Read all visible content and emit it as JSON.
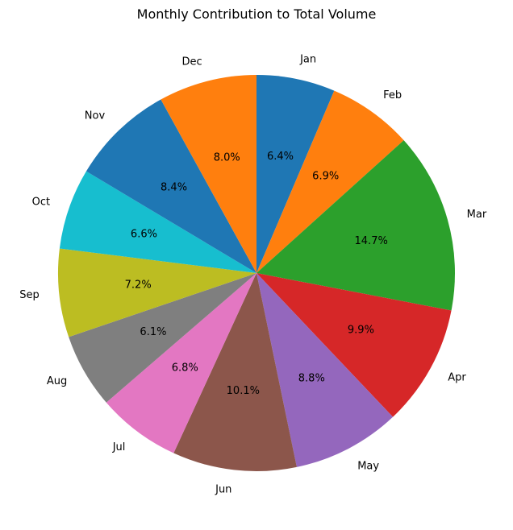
{
  "chart_data": {
    "type": "pie",
    "title": "Monthly Contribution to Total Volume",
    "start_angle_deg": 90,
    "direction": "clockwise",
    "slices": [
      {
        "label": "Jan",
        "value": 6.4,
        "pct_label": "6.4%",
        "color": "#1f77b4"
      },
      {
        "label": "Feb",
        "value": 6.9,
        "pct_label": "6.9%",
        "color": "#ff7f0e"
      },
      {
        "label": "Mar",
        "value": 14.7,
        "pct_label": "14.7%",
        "color": "#2ca02c"
      },
      {
        "label": "Apr",
        "value": 9.9,
        "pct_label": "9.9%",
        "color": "#d62728"
      },
      {
        "label": "May",
        "value": 8.8,
        "pct_label": "8.8%",
        "color": "#9467bd"
      },
      {
        "label": "Jun",
        "value": 10.1,
        "pct_label": "10.1%",
        "color": "#8c564b"
      },
      {
        "label": "Jul",
        "value": 6.8,
        "pct_label": "6.8%",
        "color": "#e377c2"
      },
      {
        "label": "Aug",
        "value": 6.1,
        "pct_label": "6.1%",
        "color": "#7f7f7f"
      },
      {
        "label": "Sep",
        "value": 7.2,
        "pct_label": "7.2%",
        "color": "#bcbd22"
      },
      {
        "label": "Oct",
        "value": 6.6,
        "pct_label": "6.6%",
        "color": "#17becf"
      },
      {
        "label": "Nov",
        "value": 8.4,
        "pct_label": "8.4%",
        "color": "#1f77b4"
      },
      {
        "label": "Dec",
        "value": 8.0,
        "pct_label": "8.0%",
        "color": "#ff7f0e"
      }
    ]
  }
}
